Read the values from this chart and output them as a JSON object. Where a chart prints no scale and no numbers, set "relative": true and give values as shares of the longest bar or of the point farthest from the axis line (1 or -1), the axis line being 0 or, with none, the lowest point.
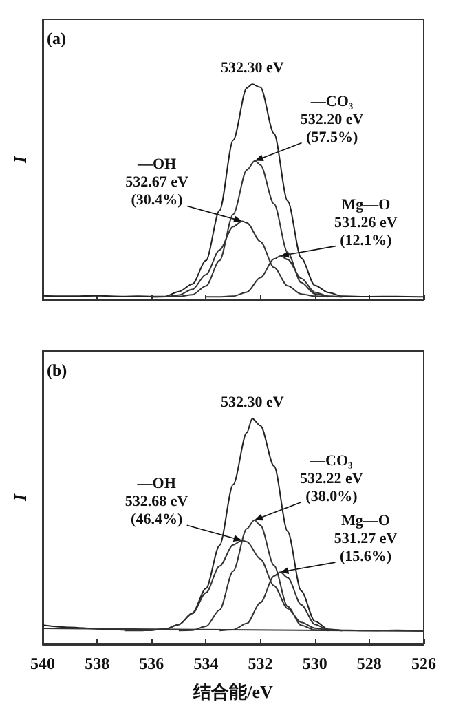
{
  "chart_data": [
    {
      "type": "line",
      "title": "(a)",
      "ylabel": "I",
      "relative": true,
      "marker": "none",
      "tick_labels": false,
      "xlim": [
        540,
        526
      ],
      "xticks": [
        540,
        538,
        536,
        534,
        532,
        530,
        528,
        526
      ],
      "series": [
        {
          "color": "#222222",
          "x": [
            540,
            539,
            538,
            537,
            536.5,
            536,
            535.5,
            535,
            534.5,
            534,
            533.5,
            533,
            532.5,
            532.3,
            532,
            531.5,
            531,
            530.5,
            530,
            529.5,
            529,
            528,
            527,
            526
          ],
          "values": [
            0.02,
            0.018,
            0.02,
            0.017,
            0.018,
            0.017,
            0.017,
            0.039,
            0.074,
            0.183,
            0.415,
            0.74,
            0.982,
            1,
            0.985,
            0.771,
            0.459,
            0.194,
            0.068,
            0.035,
            0.018,
            0.016,
            0.017,
            0.015
          ]
        },
        {
          "color": "#333333",
          "x": [
            536,
            535,
            534.5,
            534,
            533.5,
            533,
            532.5,
            532.2,
            532,
            531.5,
            531,
            530.5,
            530,
            529.5,
            529
          ],
          "values": [
            0.015,
            0.016,
            0.025,
            0.065,
            0.183,
            0.397,
            0.602,
            0.645,
            0.625,
            0.445,
            0.22,
            0.081,
            0.029,
            0.017,
            0.015
          ]
        },
        {
          "color": "#333333",
          "x": [
            536,
            535.5,
            535,
            534.5,
            534,
            533.5,
            533,
            532.67,
            532.5,
            532,
            531.5,
            531,
            530.5,
            530,
            529.5
          ],
          "values": [
            0.015,
            0.016,
            0.023,
            0.049,
            0.118,
            0.232,
            0.34,
            0.365,
            0.358,
            0.271,
            0.151,
            0.066,
            0.028,
            0.018,
            0.015
          ]
        },
        {
          "color": "#333333",
          "x": [
            534,
            533.5,
            533,
            532.5,
            532,
            531.5,
            531.26,
            531,
            530.5,
            530,
            529.5,
            529
          ],
          "values": [
            0.015,
            0.015,
            0.018,
            0.037,
            0.104,
            0.19,
            0.205,
            0.188,
            0.1,
            0.036,
            0.018,
            0.015
          ]
        }
      ],
      "annotations": [
        {
          "text": "532.30 eV",
          "x": 532.3,
          "y": 1
        },
        {
          "text": "—CO₃\n532.20 eV\n(57.5%)",
          "x": 532.2,
          "y": 0.645
        },
        {
          "text": "—OH\n532.67 eV\n(30.4%)",
          "x": 532.67,
          "y": 0.365
        },
        {
          "text": "Mg—O\n531.26 eV\n(12.1%)",
          "x": 531.26,
          "y": 0.205
        }
      ]
    },
    {
      "type": "line",
      "title": "(b)",
      "xlabel": "结合能/eV",
      "ylabel": "I",
      "relative": true,
      "marker": "none",
      "tick_labels": "x",
      "xlim": [
        540,
        526
      ],
      "xticks": [
        540,
        538,
        536,
        534,
        532,
        530,
        528,
        526
      ],
      "series": [
        {
          "color": "#222222",
          "x": [
            540,
            539,
            538,
            537,
            536.5,
            536,
            535.5,
            535,
            534.5,
            534,
            533.5,
            533,
            532.5,
            532.3,
            532,
            531.5,
            531,
            530.5,
            530,
            529.5,
            529,
            528,
            527,
            526
          ],
          "values": [
            0.085,
            0.075,
            0.068,
            0.063,
            0.062,
            0.062,
            0.067,
            0.087,
            0.138,
            0.247,
            0.438,
            0.708,
            0.938,
            1,
            0.969,
            0.79,
            0.5,
            0.236,
            0.102,
            0.066,
            0.062,
            0.06,
            0.062,
            0.06
          ]
        },
        {
          "color": "#333333",
          "x": [
            535,
            534.5,
            534,
            533.5,
            533,
            532.5,
            532.22,
            532,
            531.5,
            531,
            530.5,
            530,
            529.5
          ],
          "values": [
            0.06,
            0.062,
            0.079,
            0.152,
            0.324,
            0.512,
            0.55,
            0.527,
            0.349,
            0.167,
            0.084,
            0.063,
            0.06
          ]
        },
        {
          "color": "#333333",
          "x": [
            537,
            536.5,
            536,
            535.5,
            535,
            534.5,
            534,
            533.5,
            533,
            532.68,
            532.5,
            532,
            531.5,
            531,
            530.5,
            530,
            529.5,
            529
          ],
          "values": [
            0.06,
            0.06,
            0.062,
            0.067,
            0.087,
            0.136,
            0.228,
            0.346,
            0.44,
            0.46,
            0.454,
            0.378,
            0.259,
            0.158,
            0.097,
            0.071,
            0.063,
            0.06
          ]
        },
        {
          "color": "#333333",
          "x": [
            533.5,
            533,
            532.5,
            532,
            531.5,
            531.27,
            531,
            530.5,
            530,
            529.5,
            529
          ],
          "values": [
            0.06,
            0.064,
            0.092,
            0.184,
            0.302,
            0.32,
            0.295,
            0.175,
            0.088,
            0.063,
            0.06
          ]
        },
        {
          "color": "#333333",
          "x": [
            540,
            526
          ],
          "values": [
            0.07,
            0.058
          ]
        }
      ],
      "annotations": [
        {
          "text": "532.30 eV",
          "x": 532.3,
          "y": 1
        },
        {
          "text": "—CO₃\n532.22 eV\n(38.0%)",
          "x": 532.22,
          "y": 0.55
        },
        {
          "text": "—OH\n532.68 eV\n(46.4%)",
          "x": 532.68,
          "y": 0.46
        },
        {
          "text": "Mg—O\n531.27 eV\n(15.6%)",
          "x": 531.27,
          "y": 0.32
        }
      ]
    }
  ]
}
